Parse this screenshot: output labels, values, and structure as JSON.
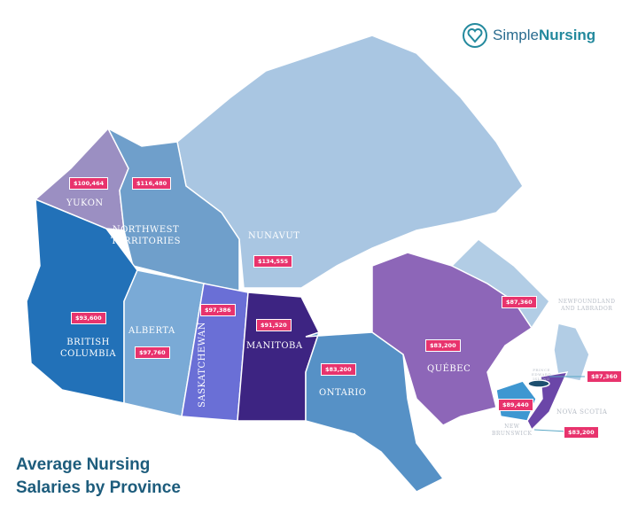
{
  "logo": {
    "part1": "Simple",
    "part2": "Nursing",
    "icon": "heart-stethoscope-icon"
  },
  "title": {
    "line1": "Average Nursing",
    "line2": "Salaries by Province"
  },
  "colors": {
    "salary_badge": "#e8336d",
    "yukon": "#9b8fc2",
    "nwt": "#6f9fcb",
    "nunavut": "#a9c6e2",
    "bc": "#2271b8",
    "alberta": "#7aaad6",
    "saskatchewan": "#6a6fd6",
    "manitoba": "#3d2482",
    "ontario": "#5691c6",
    "quebec": "#8d66b8",
    "newfoundland": "#b2cde5",
    "new_brunswick": "#3e97d1",
    "nova_scotia": "#6b46a8",
    "pei": "#1d4f6f"
  },
  "provinces": [
    {
      "name": "YUKON",
      "salary": "$100,464"
    },
    {
      "name": "NORTHWEST\nTERRITORIES",
      "salary": "$116,480"
    },
    {
      "name": "NUNAVUT",
      "salary": "$134,555"
    },
    {
      "name": "BRITISH\nCOLUMBIA",
      "salary": "$93,600"
    },
    {
      "name": "ALBERTA",
      "salary": "$97,760"
    },
    {
      "name": "SASKATCHEWAN",
      "salary": "$97,386"
    },
    {
      "name": "MANITOBA",
      "salary": "$91,520"
    },
    {
      "name": "ONTARIO",
      "salary": "$83,200"
    },
    {
      "name": "QUÉBEC",
      "salary": "$83,200"
    },
    {
      "name": "NEWFOUNDLAND\nAND LABRADOR",
      "salary": "$87,360"
    },
    {
      "name": "PRINCE\nEDWARD\nISLAND",
      "salary": "$87,360"
    },
    {
      "name": "NEW\nBRUNSWICK",
      "salary": "$89,440"
    },
    {
      "name": "NOVA SCOTIA",
      "salary": "$83,200"
    }
  ]
}
